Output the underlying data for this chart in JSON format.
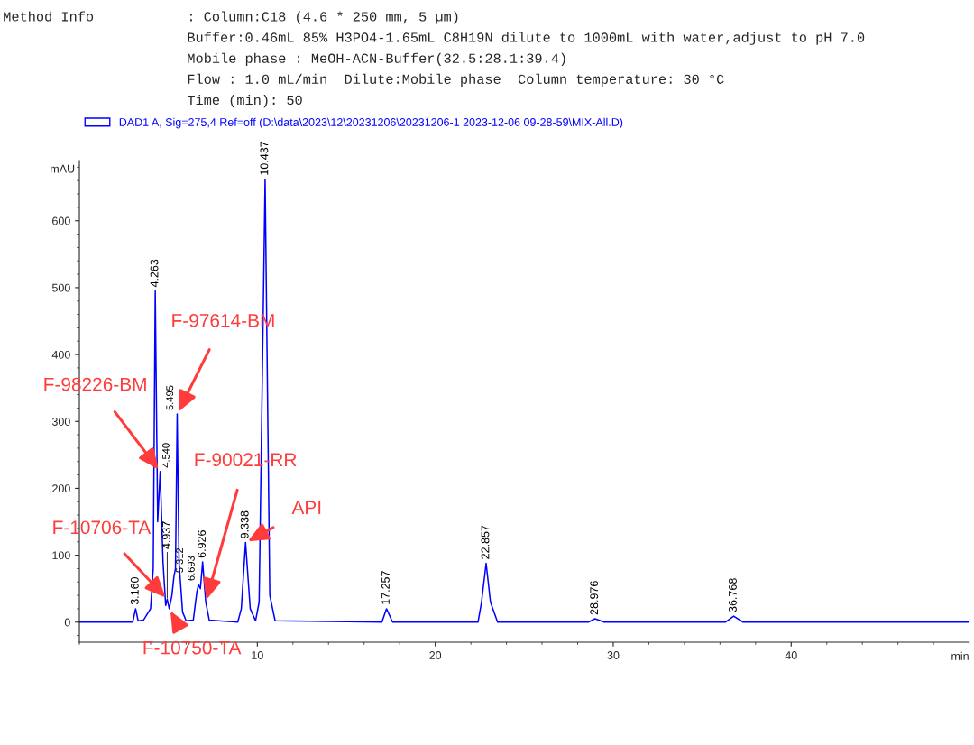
{
  "chart_data": {
    "type": "line",
    "title": "Method Info",
    "xlabel": "min",
    "ylabel": "mAU",
    "x": [
      0,
      3.0,
      3.16,
      3.3,
      3.6,
      4.0,
      4.15,
      4.263,
      4.4,
      4.54,
      4.7,
      4.85,
      4.937,
      5.05,
      5.2,
      5.312,
      5.4,
      5.495,
      5.6,
      5.8,
      6.0,
      6.4,
      6.6,
      6.693,
      6.8,
      6.926,
      7.1,
      7.3,
      8.9,
      9.1,
      9.338,
      9.6,
      9.9,
      10.1,
      10.437,
      10.7,
      11.0,
      17.0,
      17.257,
      17.6,
      22.4,
      22.6,
      22.857,
      23.1,
      23.5,
      28.6,
      28.976,
      29.5,
      36.3,
      36.768,
      37.3,
      50
    ],
    "series": [
      {
        "name": "DAD1 A, Sig=275,4 Ref=off (D:\\data\\2023\\12\\20231206\\20231206-1 2023-12-06 09-28-59\\MIX-All.D)",
        "color": "#0000ff",
        "values": [
          0,
          0,
          20,
          2,
          3,
          20,
          80,
          495,
          150,
          225,
          90,
          25,
          34,
          20,
          40,
          68,
          80,
          311,
          90,
          15,
          2,
          3,
          45,
          56,
          50,
          90,
          30,
          3,
          0,
          20,
          119,
          20,
          2,
          30,
          662,
          40,
          2,
          0,
          20,
          0,
          0,
          30,
          88,
          30,
          0,
          0,
          5,
          0,
          0,
          9,
          0,
          0
        ]
      }
    ],
    "xlim": [
      0,
      50
    ],
    "xticks": [
      10,
      20,
      30,
      40
    ],
    "ylim": [
      -30,
      690
    ],
    "yticks": [
      0,
      100,
      200,
      300,
      400,
      500,
      600
    ],
    "legend": "top left",
    "grid": false,
    "annotations": [
      ": Column:C18 (4.6 * 250 mm, 5 µm)",
      "Buffer:0.46mL 85% H3PO4-1.65mL C8H19N dilute to 1000mL with water,adjust to pH 7.0",
      "Mobile phase : MeOH-ACN-Buffer(32.5:28.1:39.4)",
      "Flow : 1.0 mL/min  Dilute:Mobile phase  Column temperature: 30 °C",
      "Time (min): 50",
      {
        "text": "3.160",
        "x": 3.16,
        "y": 20
      },
      {
        "text": "4.263",
        "x": 4.263,
        "y": 495
      },
      {
        "text": "4.540",
        "x": 4.54,
        "y": 225
      },
      {
        "text": "4.937",
        "x": 4.937,
        "y": 34
      },
      {
        "text": "5.312",
        "x": 5.312,
        "y": 68
      },
      {
        "text": "5.495",
        "x": 5.495,
        "y": 311
      },
      {
        "text": "6.693",
        "x": 6.693,
        "y": 56
      },
      {
        "text": "6.926",
        "x": 6.926,
        "y": 90
      },
      {
        "text": "9.338",
        "x": 9.338,
        "y": 119
      },
      {
        "text": "10.437",
        "x": 10.437,
        "y": 662
      },
      {
        "text": "17.257",
        "x": 17.257,
        "y": 20
      },
      {
        "text": "22.857",
        "x": 22.857,
        "y": 88
      },
      {
        "text": "28.976",
        "x": 28.976,
        "y": 5
      },
      {
        "text": "36.768",
        "x": 36.768,
        "y": 9
      },
      {
        "text": "F-98226-BM",
        "x": 4.54,
        "y": 225
      },
      {
        "text": "F-97614-BM",
        "x": 5.495,
        "y": 311
      },
      {
        "text": "F-90021-RR",
        "x": 7.1,
        "y": 30
      },
      {
        "text": "API",
        "x": 9.338,
        "y": 119
      },
      {
        "text": "F-10706-TA",
        "x": 4.937,
        "y": 34
      },
      {
        "text": "F-10750-TA",
        "x": 5.05,
        "y": 20
      }
    ]
  }
}
